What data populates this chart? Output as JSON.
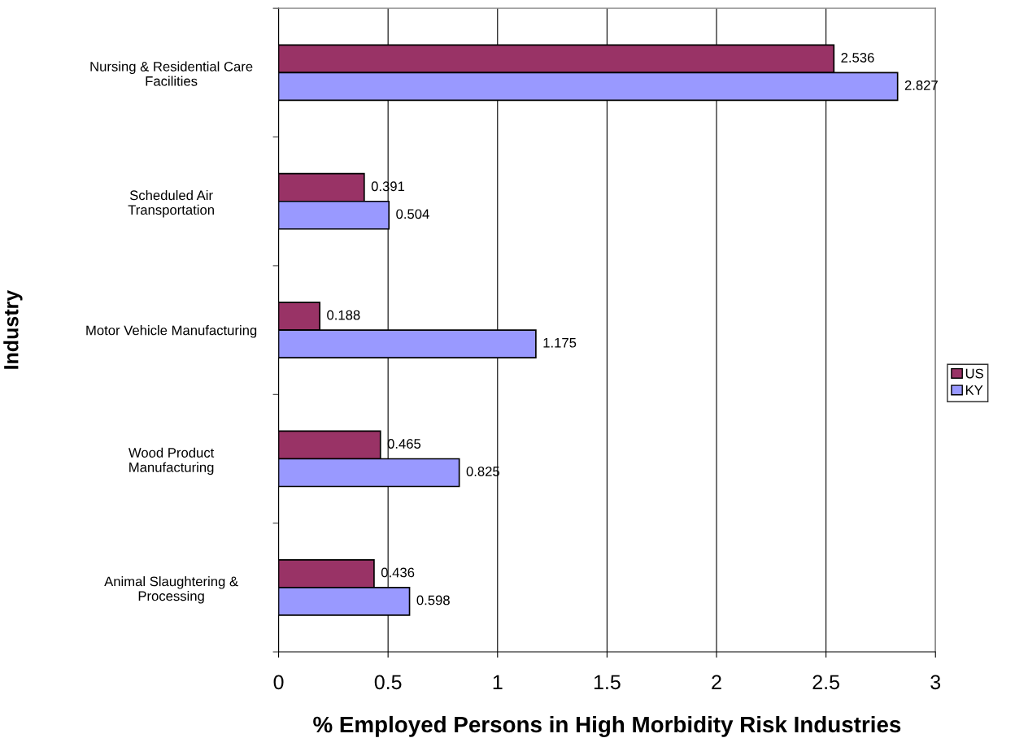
{
  "chart_data": {
    "type": "bar",
    "orientation": "horizontal",
    "xlabel": "% Employed Persons in High Morbidity Risk Industries",
    "ylabel": "Industry",
    "categories": [
      "Nursing & Residential Care\nFacilities",
      "Scheduled Air\nTransportation",
      "Motor Vehicle Manufacturing",
      "Wood Product\nManufacturing",
      "Animal Slaughtering &\nProcessing"
    ],
    "series": [
      {
        "name": "US",
        "color": "#993366",
        "values": [
          2.536,
          0.391,
          0.188,
          0.465,
          0.436
        ]
      },
      {
        "name": "KY",
        "color": "#9999ff",
        "values": [
          2.827,
          0.504,
          1.175,
          0.825,
          0.598
        ]
      }
    ],
    "xlim": [
      0,
      3
    ],
    "xticks": [
      0,
      0.5,
      1,
      1.5,
      2,
      2.5,
      3
    ],
    "grid": "x",
    "legend": "right",
    "data_labels": true
  }
}
